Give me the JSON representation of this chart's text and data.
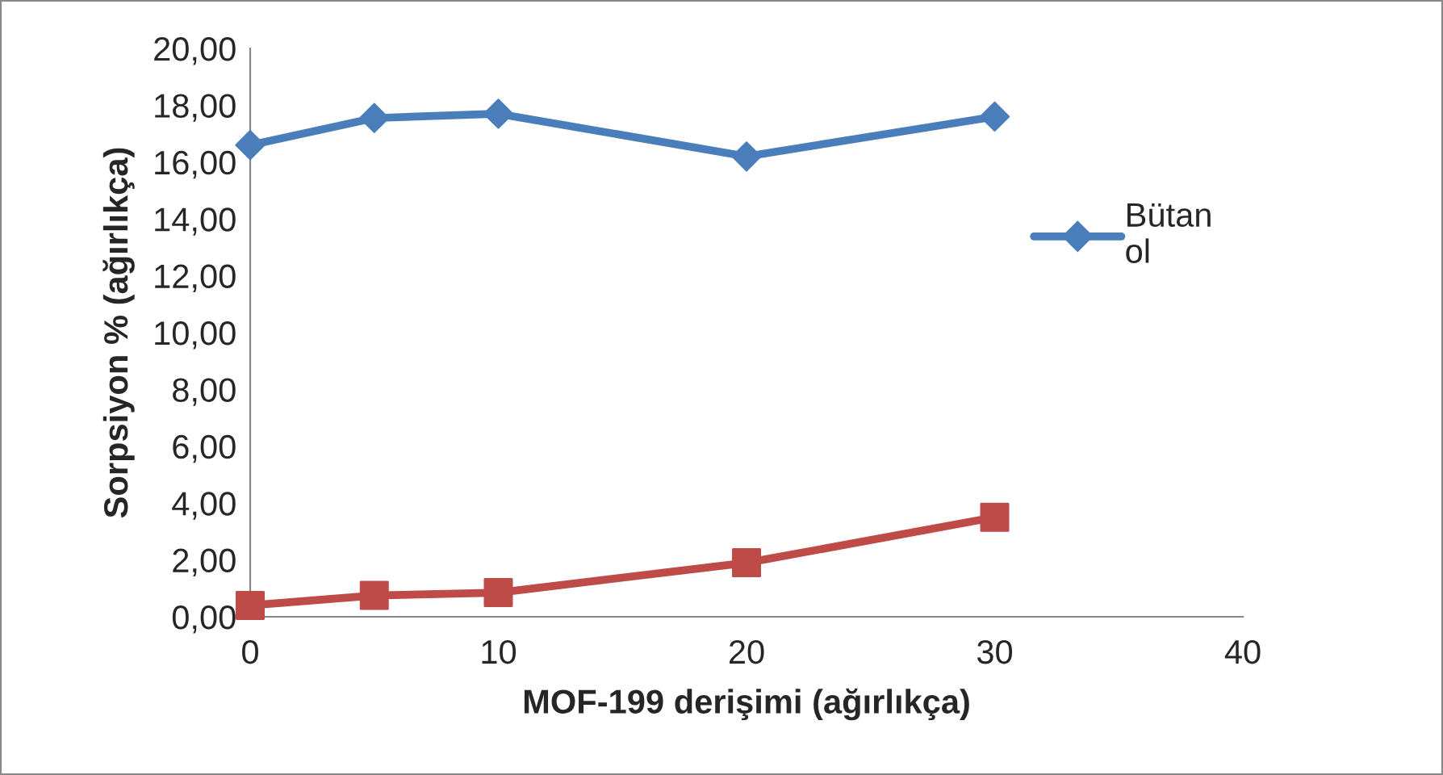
{
  "chart_data": {
    "type": "line",
    "xlabel": "MOF-199 derişimi (ağırlıkça)",
    "ylabel": "Sorpsiyon % (ağırlıkça)",
    "x": [
      0,
      5,
      10,
      20,
      30
    ],
    "series": [
      {
        "name": "Bütan\nol",
        "color": "#4a7ebb",
        "marker": "diamond",
        "values": [
          16.6,
          17.55,
          17.7,
          16.2,
          17.6
        ]
      },
      {
        "color": "#be4b48",
        "marker": "square",
        "values": [
          0.4,
          0.75,
          0.85,
          1.9,
          3.5
        ]
      }
    ],
    "xlim": [
      0,
      40
    ],
    "xticks": [
      0,
      10,
      20,
      30,
      40
    ],
    "ylim": [
      0,
      20
    ],
    "yticks": [
      {
        "value": 0,
        "label": "0,00"
      },
      {
        "value": 2,
        "label": "2,00"
      },
      {
        "value": 4,
        "label": "4,00"
      },
      {
        "value": 6,
        "label": "6,00"
      },
      {
        "value": 8,
        "label": "8,00"
      },
      {
        "value": 10,
        "label": "10,00"
      },
      {
        "value": 12,
        "label": "12,00"
      },
      {
        "value": 14,
        "label": "14,00"
      },
      {
        "value": 16,
        "label": "16,00"
      },
      {
        "value": 18,
        "label": "18,00"
      },
      {
        "value": 20,
        "label": "20,00"
      }
    ],
    "grid": false,
    "legend": "right",
    "line_style": "solid"
  }
}
